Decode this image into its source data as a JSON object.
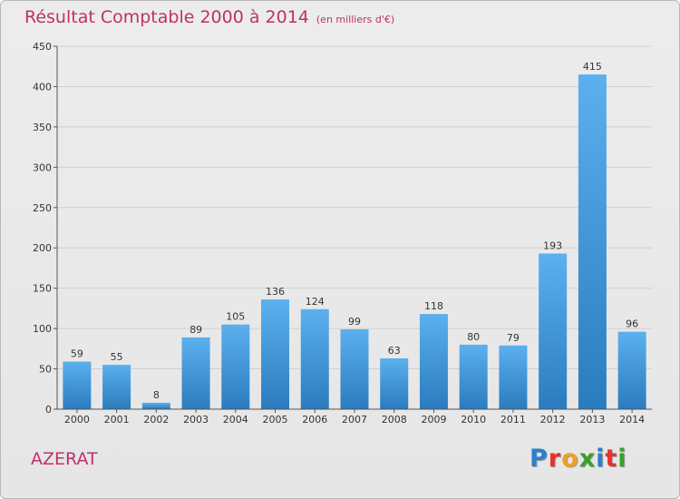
{
  "header": {
    "title": "Résultat Comptable 2000 à 2014",
    "unit": "(en milliers d'€)"
  },
  "footer": {
    "commune": "AZERAT",
    "logo_text": "Proxiti",
    "logo_colors": [
      "#2a7fd0",
      "#e8312f",
      "#f0a020",
      "#3aa02a",
      "#2a7fd0",
      "#e8312f",
      "#3aa02a"
    ]
  },
  "colors": {
    "bar_top": "#5cb0ee",
    "bar_bottom": "#2a7cbe",
    "accent": "#c0306a",
    "grid": "#d0d0d0"
  },
  "chart_data": {
    "type": "bar",
    "title": "Résultat Comptable 2000 à 2014",
    "xlabel": "",
    "ylabel": "",
    "categories": [
      "2000",
      "2001",
      "2002",
      "2003",
      "2004",
      "2005",
      "2006",
      "2007",
      "2008",
      "2009",
      "2010",
      "2011",
      "2012",
      "2013",
      "2014"
    ],
    "values": [
      59,
      55,
      8,
      89,
      105,
      136,
      124,
      99,
      63,
      118,
      80,
      79,
      193,
      415,
      96
    ],
    "ylim": [
      0,
      450
    ],
    "yticks": [
      0,
      50,
      100,
      150,
      200,
      250,
      300,
      350,
      400,
      450
    ],
    "grid": true,
    "legend": "none"
  }
}
